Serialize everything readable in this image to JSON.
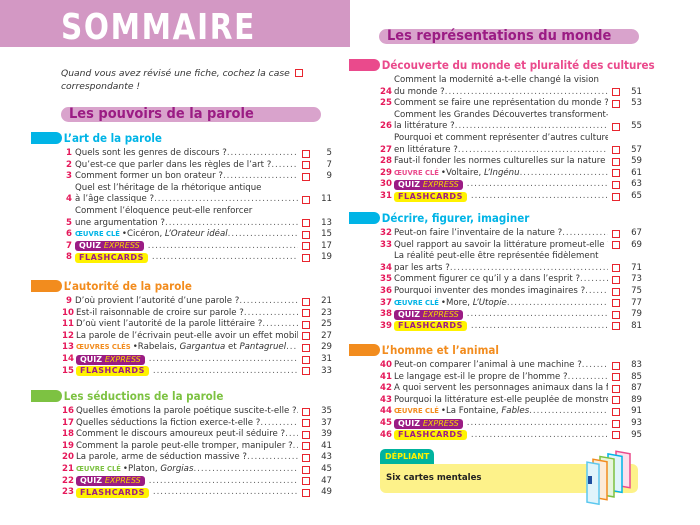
{
  "title": "SOMMAIRE",
  "intro": "Quand vous avez révisé une fiche, cochez la case",
  "intro2": "correspondante !",
  "left": {
    "part": "Les pouvoirs de la parole",
    "sections": [
      {
        "title": "L’art de la parole",
        "color": "#00b4e6",
        "items": [
          {
            "num": "1",
            "lines": [
              "Quels sont les genres de discours ?"
            ],
            "page": "5"
          },
          {
            "num": "2",
            "lines": [
              "Qu’est-ce que parler dans les règles de l’art ?"
            ],
            "page": "7"
          },
          {
            "num": "3",
            "lines": [
              "Comment former un bon orateur ?"
            ],
            "page": "9"
          },
          {
            "num": "4",
            "lines": [
              "Quel est l’héritage de la rhétorique antique",
              "à l’âge classique ?"
            ],
            "page": "11"
          },
          {
            "num": "5",
            "lines": [
              "Comment l’éloquence peut-elle renforcer",
              "une argumentation ?"
            ],
            "page": "13"
          },
          {
            "num": "6",
            "type": "oeuvre",
            "tag": "ŒUVRE CLÉ",
            "author": "Cicéron,",
            "work": "L’Orateur idéal",
            "page": "15"
          },
          {
            "num": "7",
            "type": "quiz",
            "q1": "QUIZ",
            "q2": "EXPRESS",
            "page": "17"
          },
          {
            "num": "8",
            "type": "flash",
            "label": "FLASHCARDS",
            "page": "19"
          }
        ]
      },
      {
        "title": "L’autorité de la parole",
        "color": "#f28c1e",
        "items": [
          {
            "num": "9",
            "lines": [
              "D’où provient l’autorité d’une parole ?"
            ],
            "page": "21"
          },
          {
            "num": "10",
            "lines": [
              "Est-il raisonnable de croire sur parole ?"
            ],
            "page": "23"
          },
          {
            "num": "11",
            "lines": [
              "D’où vient l’autorité de la parole littéraire ?"
            ],
            "page": "25"
          },
          {
            "num": "12",
            "lines": [
              "La parole de l’écrivain peut-elle avoir un effet mobilisateur ?"
            ],
            "page": "27"
          },
          {
            "num": "13",
            "type": "oeuvre",
            "tag": "ŒUVRES CLÉS",
            "author": "Rabelais,",
            "work": "Gargantua",
            "mid": "et",
            "work2": "Pantagruel",
            "page": "29"
          },
          {
            "num": "14",
            "type": "quiz",
            "q1": "QUIZ",
            "q2": "EXPRESS",
            "page": "31"
          },
          {
            "num": "15",
            "type": "flash",
            "label": "FLASHCARDS",
            "page": "33"
          }
        ]
      },
      {
        "title": "Les séductions de la parole",
        "color": "#7dc242",
        "items": [
          {
            "num": "16",
            "lines": [
              "Quelles émotions la parole poétique suscite-t-elle ?"
            ],
            "page": "35"
          },
          {
            "num": "17",
            "lines": [
              "Quelles séductions la fiction exerce-t-elle ?"
            ],
            "page": "37"
          },
          {
            "num": "18",
            "lines": [
              "Comment le discours amoureux peut-il séduire ?"
            ],
            "page": "39"
          },
          {
            "num": "19",
            "lines": [
              "Comment la parole peut-elle tromper, manipuler ?"
            ],
            "page": "41"
          },
          {
            "num": "20",
            "lines": [
              "La parole, arme de séduction massive ?"
            ],
            "page": "43"
          },
          {
            "num": "21",
            "type": "oeuvre",
            "tag": "ŒUVRE CLÉ",
            "author": "Platon,",
            "work": "Gorgias",
            "page": "45"
          },
          {
            "num": "22",
            "type": "quiz",
            "q1": "QUIZ",
            "q2": "EXPRESS",
            "page": "47"
          },
          {
            "num": "23",
            "type": "flash",
            "label": "FLASHCARDS",
            "page": "49"
          }
        ]
      }
    ]
  },
  "right": {
    "part": "Les représentations du monde",
    "sections": [
      {
        "title": "Découverte du monde et pluralité des cultures",
        "color": "#ea4a8c",
        "items": [
          {
            "num": "24",
            "lines": [
              "Comment la modernité a-t-elle changé la vision",
              "du monde ?"
            ],
            "page": "51"
          },
          {
            "num": "25",
            "lines": [
              "Comment se faire une représentation du monde ?"
            ],
            "page": "53"
          },
          {
            "num": "26",
            "lines": [
              "Comment les Grandes Découvertes transforment-elles",
              "la littérature ?"
            ],
            "page": "55"
          },
          {
            "num": "27",
            "lines": [
              "Pourquoi et comment représenter d’autres cultures",
              "en littérature ?"
            ],
            "page": "57"
          },
          {
            "num": "28",
            "lines": [
              "Faut-il fonder les normes culturelles sur la nature ?"
            ],
            "page": "59"
          },
          {
            "num": "29",
            "type": "oeuvre",
            "tag": "ŒUVRE CLÉ",
            "author": "Voltaire,",
            "work": "L’Ingénu",
            "page": "61"
          },
          {
            "num": "30",
            "type": "quiz",
            "q1": "QUIZ",
            "q2": "EXPRESS",
            "page": "63"
          },
          {
            "num": "31",
            "type": "flash",
            "label": "FLASHCARDS",
            "page": "65"
          }
        ]
      },
      {
        "title": "Décrire, figurer, imaginer",
        "color": "#00b4e6",
        "items": [
          {
            "num": "32",
            "lines": [
              "Peut-on faire l’inventaire de la nature ?"
            ],
            "page": "67"
          },
          {
            "num": "33",
            "lines": [
              "Quel rapport au savoir la littérature promeut-elle ?"
            ],
            "page": "69"
          },
          {
            "num": "34",
            "lines": [
              "La réalité peut-elle être représentée fidèlement",
              "par les arts ?"
            ],
            "page": "71"
          },
          {
            "num": "35",
            "lines": [
              "Comment figurer ce qu’il y a dans l’esprit ?"
            ],
            "page": "73"
          },
          {
            "num": "36",
            "lines": [
              "Pourquoi inventer des mondes imaginaires ?"
            ],
            "page": "75"
          },
          {
            "num": "37",
            "type": "oeuvre",
            "tag": "ŒUVRE CLÉ",
            "author": "More,",
            "work": "L’Utopie",
            "page": "77"
          },
          {
            "num": "38",
            "type": "quiz",
            "q1": "QUIZ",
            "q2": "EXPRESS",
            "page": "79"
          },
          {
            "num": "39",
            "type": "flash",
            "label": "FLASHCARDS",
            "page": "81"
          }
        ]
      },
      {
        "title": "L’homme et l’animal",
        "color": "#f28c1e",
        "items": [
          {
            "num": "40",
            "lines": [
              "Peut-on comparer l’animal à une machine ?"
            ],
            "page": "83"
          },
          {
            "num": "41",
            "lines": [
              "Le langage est-il le propre de l’homme ?"
            ],
            "page": "85"
          },
          {
            "num": "42",
            "lines": [
              "À quoi servent les personnages animaux dans la fiction ?"
            ],
            "page": "87"
          },
          {
            "num": "43",
            "lines": [
              "Pourquoi la littérature est-elle peuplée de monstres ?"
            ],
            "page": "89"
          },
          {
            "num": "44",
            "type": "oeuvre",
            "tag": "ŒUVRE CLÉ",
            "author": "La Fontaine,",
            "work": "Fables",
            "page": "91"
          },
          {
            "num": "45",
            "type": "quiz",
            "q1": "QUIZ",
            "q2": "EXPRESS",
            "page": "93"
          },
          {
            "num": "46",
            "type": "flash",
            "label": "FLASHCARDS",
            "page": "95"
          }
        ]
      }
    ]
  },
  "depliant": {
    "tag": "DÉPLIANT",
    "label": "Six cartes mentales"
  },
  "colors": {
    "number": "#e5185a",
    "checkbox": "#e8252e",
    "quiz": "#9b1c84",
    "flashcards": "#fff200",
    "header": "#d398c4"
  }
}
